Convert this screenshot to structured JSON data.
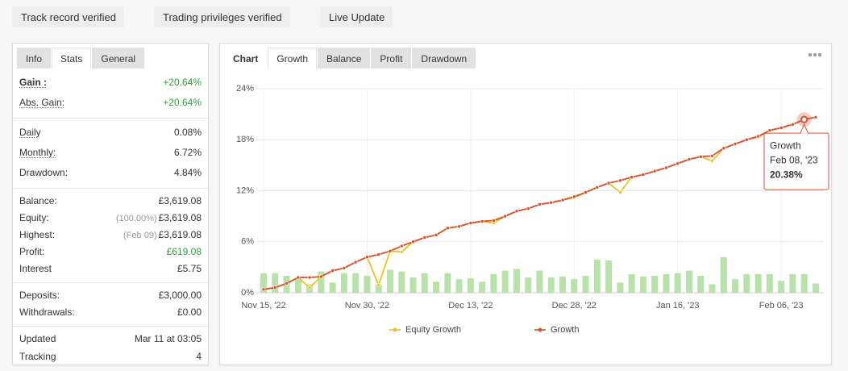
{
  "badges": [
    {
      "label": "Track record verified",
      "icon": "check"
    },
    {
      "label": "Trading privileges verified",
      "icon": "check"
    },
    {
      "label": "Live Update",
      "icon": "alert"
    }
  ],
  "stats_panel": {
    "tabs": [
      "Info",
      "Stats",
      "General"
    ],
    "active_tab": 1,
    "groups": [
      {
        "rows": [
          {
            "label": "Gain :",
            "value": "+20.64%",
            "color": "#2e9e3e",
            "bold": true,
            "dotted": true
          },
          {
            "label": "Abs. Gain:",
            "value": "+20.64%",
            "color": "#2e9e3e",
            "dotted": true
          }
        ]
      },
      {
        "rows": [
          {
            "label": "Daily",
            "value": "0.08%",
            "dotted": true
          },
          {
            "label": "Monthly:",
            "value": "6.72%",
            "dotted": true
          },
          {
            "label": "Drawdown:",
            "value": "4.84%"
          }
        ]
      },
      {
        "rows": [
          {
            "label": "Balance:",
            "value": "£3,619.08"
          },
          {
            "label": "Equity:",
            "note": "(100.00%)",
            "value": "£3,619.08"
          },
          {
            "label": "Highest:",
            "note": "(Feb 09)",
            "value": "£3,619.08"
          },
          {
            "label": "Profit:",
            "value": "£619.08",
            "color": "#2e9e3e"
          },
          {
            "label": "Interest",
            "value": "£5.75"
          }
        ]
      },
      {
        "rows": [
          {
            "label": "Deposits:",
            "value": "£3,000.00"
          },
          {
            "label": "Withdrawals:",
            "value": "£0.00"
          }
        ]
      },
      {
        "rows": [
          {
            "label": "Updated",
            "value": "Mar 11 at 03:05"
          },
          {
            "label": "Tracking",
            "value": "4"
          }
        ]
      }
    ]
  },
  "chart_panel": {
    "tabs": [
      "Chart",
      "Growth",
      "Balance",
      "Profit",
      "Drawdown"
    ],
    "active_tab": 1
  },
  "chart_data": {
    "type": "line",
    "categories": [
      "Nov 15, '22",
      null,
      null,
      null,
      null,
      null,
      null,
      null,
      null,
      "Nov 30, '22",
      null,
      null,
      null,
      null,
      null,
      null,
      null,
      null,
      "Dec 13, '22",
      null,
      null,
      null,
      null,
      null,
      null,
      null,
      null,
      "Dec 28, '22",
      null,
      null,
      null,
      null,
      null,
      null,
      null,
      null,
      "Jan 16, '23",
      null,
      null,
      null,
      null,
      null,
      null,
      null,
      null,
      "Feb 06, '23",
      null,
      null,
      null
    ],
    "series": [
      {
        "name": "Equity Growth",
        "color": "#e8c520",
        "values": [
          0.4,
          0.6,
          1.1,
          1.8,
          0.6,
          1.9,
          2.6,
          2.9,
          3.6,
          4.2,
          0.9,
          4.9,
          4.8,
          6.0,
          6.5,
          6.8,
          7.6,
          7.8,
          8.2,
          8.4,
          8.2,
          9.0,
          9.6,
          9.9,
          10.4,
          10.6,
          10.9,
          11.2,
          11.8,
          12.4,
          12.9,
          11.8,
          13.6,
          13.9,
          14.3,
          14.7,
          15.2,
          15.7,
          16.0,
          15.5,
          17.0,
          17.5,
          18.0,
          18.3,
          19.1,
          19.4,
          19.8,
          20.38,
          20.64
        ]
      },
      {
        "name": "Growth",
        "color": "#d9502f",
        "values": [
          0.4,
          0.6,
          1.1,
          1.8,
          1.8,
          1.9,
          2.6,
          2.9,
          3.6,
          4.2,
          4.5,
          4.9,
          5.5,
          6.0,
          6.5,
          6.8,
          7.6,
          7.8,
          8.2,
          8.4,
          8.5,
          9.0,
          9.6,
          9.9,
          10.4,
          10.6,
          10.9,
          11.3,
          11.8,
          12.4,
          12.9,
          13.2,
          13.6,
          13.9,
          14.3,
          14.7,
          15.2,
          15.7,
          16.0,
          16.1,
          17.0,
          17.5,
          18.0,
          18.4,
          19.1,
          19.4,
          19.8,
          20.38,
          20.64
        ],
        "value_labels": [
          null,
          null,
          null,
          null,
          null,
          null,
          null,
          null,
          null,
          null,
          null,
          null,
          null,
          null,
          null,
          null,
          null,
          null,
          null,
          null,
          null,
          null,
          null,
          null,
          null,
          null,
          null,
          null,
          null,
          null,
          null,
          null,
          null,
          null,
          null,
          null,
          null,
          null,
          null,
          null,
          null,
          null,
          null,
          null,
          null,
          null,
          null,
          "20.38%",
          null
        ]
      },
      {
        "type": "bar",
        "color": "#b9e2ab",
        "values": [
          2.3,
          2.3,
          2.0,
          1.6,
          1.0,
          2.5,
          1.2,
          2.3,
          2.3,
          2.0,
          1.0,
          2.7,
          2.5,
          1.8,
          2.3,
          1.3,
          2.3,
          1.6,
          1.7,
          1.3,
          2.2,
          2.6,
          2.8,
          1.8,
          2.6,
          1.8,
          1.9,
          1.6,
          2.0,
          3.9,
          3.8,
          1.2,
          2.2,
          1.9,
          2.0,
          2.2,
          2.3,
          2.6,
          2.0,
          1.0,
          4.2,
          1.6,
          2.2,
          2.2,
          2.2,
          1.4,
          2.2,
          2.2,
          1.1
        ]
      }
    ],
    "tooltip": {
      "date": "Feb 08, '23"
    },
    "ylim": [
      0,
      24
    ],
    "yticks": [
      {
        "value": 0,
        "label": "0%"
      },
      {
        "value": 6,
        "label": "6%"
      },
      {
        "value": 12,
        "label": "12%"
      },
      {
        "value": 18,
        "label": "18%"
      },
      {
        "value": 24,
        "label": "24%"
      }
    ],
    "grid": true
  }
}
